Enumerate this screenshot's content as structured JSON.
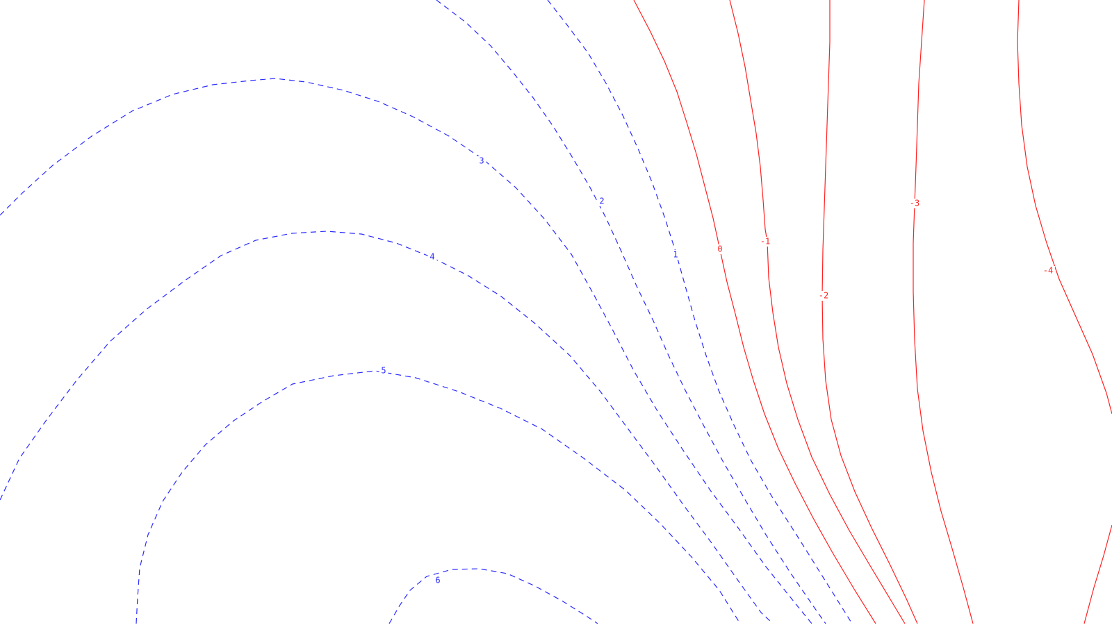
{
  "chart_data": {
    "type": "contour",
    "title": "",
    "xlabel": "",
    "ylabel": "",
    "colors": {
      "positive": "#2a2aff",
      "non_positive": "#ff2020",
      "background": "#ffffff"
    },
    "positive_style": "dashed",
    "non_positive_style": "solid",
    "levels": [
      {
        "id": "level-6",
        "value": 6,
        "label": "6",
        "sign": "positive"
      },
      {
        "id": "level-5",
        "value": 5,
        "label": "5",
        "sign": "positive"
      },
      {
        "id": "level-4",
        "value": 4,
        "label": "4",
        "sign": "positive"
      },
      {
        "id": "level-3",
        "value": 3,
        "label": "3",
        "sign": "positive"
      },
      {
        "id": "level-2",
        "value": 2,
        "label": "2",
        "sign": "positive"
      },
      {
        "id": "level-1",
        "value": 1,
        "label": "1",
        "sign": "positive"
      },
      {
        "id": "level-0",
        "value": 0,
        "label": "0",
        "sign": "non_positive"
      },
      {
        "id": "level-m1",
        "value": -1,
        "label": "-1",
        "sign": "non_positive"
      },
      {
        "id": "level-m2",
        "value": -2,
        "label": "-2",
        "sign": "non_positive"
      },
      {
        "id": "level-m3",
        "value": -3,
        "label": "-3",
        "sign": "non_positive"
      },
      {
        "id": "level-m4",
        "value": -4,
        "label": "-4",
        "sign": "non_positive"
      }
    ]
  }
}
